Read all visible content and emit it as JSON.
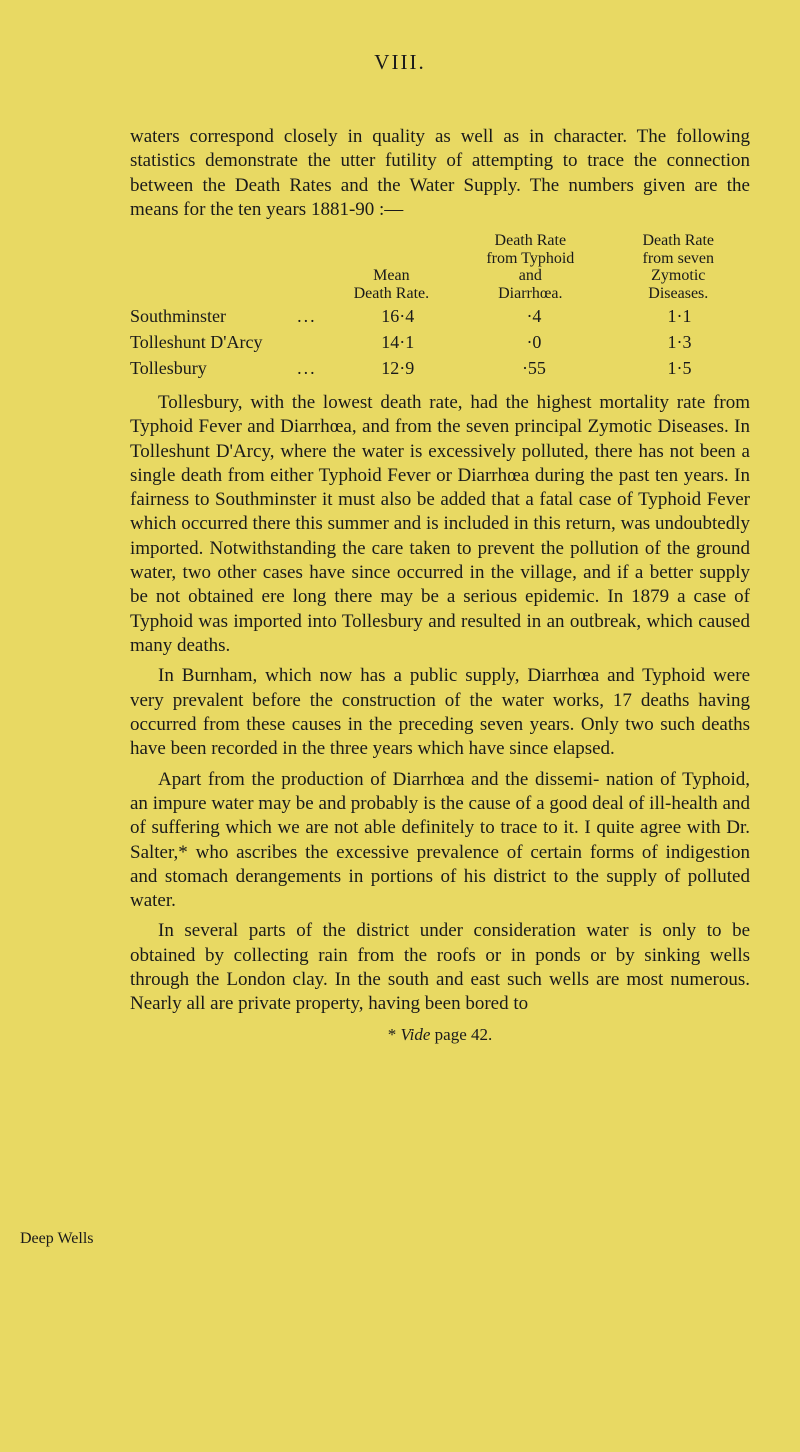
{
  "header": "VIII.",
  "p1": "waters correspond closely in quality as well as in character. The following statistics demonstrate the utter futility of attempting to trace the connection between the Death Rates and the Water Supply. The numbers given are the means for the ten years 1881-90 :—",
  "table": {
    "headers": {
      "mean": "Mean\nDeath Rate.",
      "typhoid": "Death Rate\nfrom Typhoid\nand\nDiarrhœa.",
      "zymotic": "Death Rate\nfrom seven\nZymotic\nDiseases."
    },
    "rows": [
      {
        "name": "Southminster",
        "dots": "...",
        "mean": "16·4",
        "typh": "·4",
        "zym": "1·1"
      },
      {
        "name": "Tolleshunt D'Arcy",
        "dots": "",
        "mean": "14·1",
        "typh": "·0",
        "zym": "1·3"
      },
      {
        "name": "Tollesbury",
        "dots": "...",
        "mean": "12·9",
        "typh": "·55",
        "zym": "1·5"
      }
    ]
  },
  "p2": "Tollesbury, with the lowest death rate, had the highest mortality rate from Typhoid Fever and Diarrhœa, and from the seven principal Zymotic Diseases. In Tolleshunt D'Arcy, where the water is excessively polluted, there has not been a single death from either Typhoid Fever or Diarrhœa during the past ten years. In fairness to Southminster it must also be added that a fatal case of Typhoid Fever which occurred there this summer and is included in this return, was undoubtedly imported. Notwithstanding the care taken to prevent the pollution of the ground water, two other cases have since occurred in the village, and if a better supply be not obtained ere long there may be a serious epidemic. In 1879 a case of Typhoid was imported into Tollesbury and resulted in an outbreak, which caused many deaths.",
  "p3": "In Burnham, which now has a public supply, Diarrhœa and Typhoid were very prevalent before the construction of the water works, 17 deaths having occurred from these causes in the preceding seven years. Only two such deaths have been recorded in the three years which have since elapsed.",
  "p4": "Apart from the production of Diarrhœa and the dissemi- nation of Typhoid, an impure water may be and probably is the cause of a good deal of ill-health and of suffering which we are not able definitely to trace to it. I quite agree with Dr. Salter,* who ascribes the excessive prevalence of certain forms of indigestion and stomach derangements in portions of his district to the supply of polluted water.",
  "p5": "In several parts of the district under consideration water is only to be obtained by collecting rain from the roofs or in ponds or by sinking wells through the London clay. In the south and east such wells are most numerous. Nearly all are private property, having been bored to",
  "sideLabel": "Deep Wells",
  "footnote": "* Vide page 42."
}
